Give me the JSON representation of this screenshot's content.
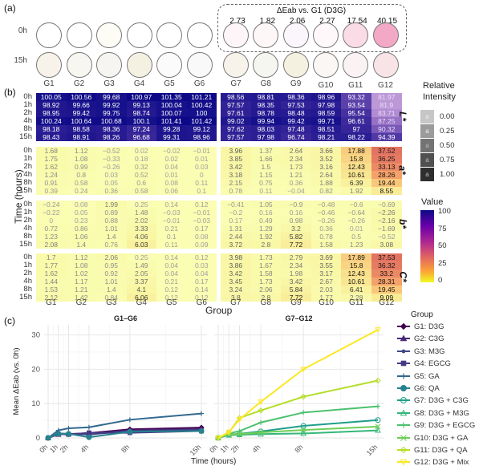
{
  "panels": {
    "a": "(a)",
    "b": "(b)",
    "c": "(c)"
  },
  "panel_a": {
    "row_labels": [
      "0h",
      "15h"
    ],
    "groups": [
      "G1",
      "G2",
      "G3",
      "G4",
      "G5",
      "G6",
      "G7",
      "G8",
      "G9",
      "G10",
      "G11",
      "G12"
    ],
    "well_colors_0h": [
      "#ffffff",
      "#ffffff",
      "#fdfdf6",
      "#ffffff",
      "#ffffff",
      "#ffffff",
      "#fdf5f8",
      "#fdf7f8",
      "#faf6fb",
      "#fef8fa",
      "#fbdbe6",
      "#f3a8c6"
    ],
    "well_colors_15h": [
      "#f8f3ea",
      "#f8f6f1",
      "#f6f5f1",
      "#f5f1e2",
      "#fbfbfb",
      "#f9f9fa",
      "#f7f3ea",
      "#f5f6f0",
      "#f5f1e0",
      "#faf7f4",
      "#fbf3f3",
      "#f8e4e6"
    ],
    "delta_title": "ΔEab vs. G1 (D3G)",
    "delta_values": [
      "2.73",
      "1.82",
      "2.06",
      "2.27",
      "17.54",
      "40.15"
    ]
  },
  "chart_data": [
    {
      "type": "heatmap",
      "title": "",
      "xlabel": "Group",
      "ylabel": "Time (hours)",
      "times": [
        "0h",
        "1h",
        "2h",
        "4h",
        "8h",
        "15h"
      ],
      "groups_left": [
        "G1",
        "G2",
        "G3",
        "G4",
        "G5",
        "G6"
      ],
      "groups_right": [
        "G7",
        "G8",
        "G9",
        "G10",
        "G11",
        "G12"
      ],
      "facets": [
        {
          "name": "L*",
          "values": [
            [
              "100.05",
              "100.56",
              "99.68",
              "100.97",
              "101.35",
              "101.21",
              "98.56",
              "98.81",
              "98.36",
              "98.96",
              "93.32",
              "81.97"
            ],
            [
              "98.92",
              "99.66",
              "99.92",
              "99.13",
              "100.04",
              "100.42",
              "97.57",
              "98.35",
              "97.53",
              "97.98",
              "93.54",
              "81.9"
            ],
            [
              "98.95",
              "99.42",
              "99.75",
              "98.74",
              "100.07",
              "100",
              "97.61",
              "98.78",
              "98.48",
              "98.59",
              "95.54",
              "83.71"
            ],
            [
              "100.24",
              "100.64",
              "100.68",
              "100.1",
              "101.41",
              "101.42",
              "99.02",
              "99.94",
              "99.42",
              "99.71",
              "96.61",
              "87.25"
            ],
            [
              "98.18",
              "98.58",
              "98.36",
              "97.24",
              "99.28",
              "99.12",
              "97.62",
              "98.03",
              "97.48",
              "98.51",
              "97",
              "90.32"
            ],
            [
              "98.43",
              "98.91",
              "98.26",
              "96.68",
              "99.31",
              "98.96",
              "97.57",
              "97.98",
              "96.74",
              "98.21",
              "98.22",
              "94.39"
            ]
          ]
        },
        {
          "name": "a*",
          "values": [
            [
              "1.68",
              "1.12",
              "−0.52",
              "0.02",
              "−0.02",
              "−0.01",
              "3.96",
              "1.37",
              "2.64",
              "3.66",
              "17.88",
              "37.52"
            ],
            [
              "1.75",
              "1.08",
              "−0.33",
              "0.18",
              "0.02",
              "0.01",
              "3.85",
              "1.66",
              "2.34",
              "3.52",
              "15.8",
              "36.25"
            ],
            [
              "1.62",
              "0.99",
              "−0.26",
              "0.32",
              "0.04",
              "0.03",
              "3.42",
              "1.5",
              "1.73",
              "3.16",
              "12.43",
              "33.13"
            ],
            [
              "1.24",
              "0.8",
              "0.03",
              "0.52",
              "0.01",
              "0",
              "3.18",
              "1.15",
              "1.21",
              "2.64",
              "10.61",
              "28.26"
            ],
            [
              "0.91",
              "0.58",
              "0.05",
              "0.6",
              "0.08",
              "0.11",
              "2.15",
              "0.75",
              "0.36",
              "1.88",
              "6.39",
              "19.44"
            ],
            [
              "0.39",
              "0.24",
              "0.36",
              "0.58",
              "0.06",
              "0.1",
              "0.78",
              "0.11",
              "−0.04",
              "0.82",
              "1.92",
              "8.55"
            ]
          ]
        },
        {
          "name": "b*",
          "values": [
            [
              "−0.24",
              "0.08",
              "1.99",
              "0.25",
              "0.14",
              "0.12",
              "−0.41",
              "1.05",
              "−0.9",
              "−0.48",
              "−0.6",
              "−0.69"
            ],
            [
              "−0.22",
              "0.05",
              "0.89",
              "1.48",
              "−0.03",
              "−0.01",
              "−0.2",
              "0.16",
              "0.16",
              "−0.46",
              "−0.64",
              "−2.26"
            ],
            [
              "0",
              "0.23",
              "0.88",
              "2.02",
              "−0.01",
              "−0.03",
              "0.17",
              "0.49",
              "0.98",
              "−0.26",
              "−0.26",
              "−2.16"
            ],
            [
              "0.72",
              "0.86",
              "1.01",
              "3.33",
              "0.21",
              "0.17",
              "1.31",
              "1.29",
              "3.2",
              "0.36",
              "0.01",
              "−1.69"
            ],
            [
              "1.23",
              "1.06",
              "1.4",
              "4.06",
              "0.1",
              "0.08",
              "2.44",
              "1.92",
              "5.82",
              "0.78",
              "0.5",
              "−0.52"
            ],
            [
              "2.08",
              "1.4",
              "0.76",
              "6.03",
              "0.11",
              "0.09",
              "3.72",
              "2.8",
              "7.72",
              "1.58",
              "1.23",
              "3.08"
            ]
          ]
        },
        {
          "name": "C*",
          "values": [
            [
              "1.7",
              "1.12",
              "2.06",
              "0.25",
              "0.14",
              "0.12",
              "3.98",
              "1.73",
              "2.79",
              "3.69",
              "17.89",
              "37.53"
            ],
            [
              "1.77",
              "1.08",
              "0.95",
              "1.49",
              "0.04",
              "0.03",
              "3.86",
              "1.67",
              "2.34",
              "3.55",
              "15.8",
              "36.32"
            ],
            [
              "1.62",
              "1.02",
              "0.92",
              "2.05",
              "0.04",
              "0.04",
              "3.42",
              "1.58",
              "1.98",
              "3.17",
              "12.43",
              "33.2"
            ],
            [
              "1.44",
              "1.17",
              "1.01",
              "3.37",
              "0.21",
              "0.17",
              "3.45",
              "1.73",
              "3.42",
              "2.67",
              "10.61",
              "28.31"
            ],
            [
              "1.53",
              "1.21",
              "1.4",
              "4.1",
              "0.12",
              "0.14",
              "3.24",
              "2.06",
              "5.84",
              "2.03",
              "6.41",
              "19.45"
            ],
            [
              "2.12",
              "1.42",
              "0.84",
              "6.06",
              "0.12",
              "0.12",
              "3.8",
              "2.8",
              "7.72",
              "1.77",
              "2.28",
              "9.09"
            ]
          ]
        }
      ],
      "legend_relative_intensity": {
        "title": "Relative Intensity",
        "ticks": [
          "0.00",
          "0.25",
          "0.50",
          "0.75",
          "1.00"
        ],
        "glyph": "a"
      },
      "legend_value": {
        "title": "Value",
        "ticks": [
          "100",
          "75",
          "50",
          "25",
          "0"
        ],
        "range": [
          0,
          100
        ]
      }
    },
    {
      "type": "line",
      "facets": [
        "G1–G6",
        "G7–G12"
      ],
      "xlabel": "Time (hours)",
      "ylabel": "Mean ΔEab (vs. 0h)",
      "x": [
        0,
        1,
        2,
        4,
        8,
        15
      ],
      "x_tick_labels": [
        "0h",
        "1h",
        "2h",
        "4h",
        "8h",
        "15h"
      ],
      "ylim": [
        0,
        32
      ],
      "y_ticks": [
        0,
        10,
        20,
        30
      ],
      "legend_title": "Group",
      "legend_position": "right",
      "series": [
        {
          "name": "G1: D3G",
          "facet": 0,
          "color": "#440154",
          "marker": "diamond-filled",
          "values": [
            0,
            1.2,
            1.1,
            1.4,
            2.5,
            3.0
          ]
        },
        {
          "name": "G2: C3G",
          "facet": 0,
          "color": "#482878",
          "marker": "triangle-filled",
          "values": [
            0,
            1.0,
            1.2,
            1.2,
            2.2,
            2.6
          ]
        },
        {
          "name": "G3: M3G",
          "facet": 0,
          "color": "#3e4989",
          "marker": "circle-small",
          "values": [
            0,
            1.3,
            1.2,
            1.0,
            2.0,
            2.3
          ]
        },
        {
          "name": "G4: EGCG",
          "facet": 0,
          "color": "#443a83",
          "marker": "square-filled",
          "values": [
            0,
            1.1,
            1.0,
            1.5,
            1.5,
            2.0
          ]
        },
        {
          "name": "G5: GA",
          "facet": 0,
          "color": "#31688e",
          "marker": "plus",
          "values": [
            0,
            2.2,
            2.8,
            3.1,
            5.3,
            7.1
          ]
        },
        {
          "name": "G6: QA",
          "facet": 0,
          "color": "#26828e",
          "marker": "circle-filled",
          "values": [
            0,
            1.2,
            1.2,
            0.2,
            1.8,
            2.0
          ]
        },
        {
          "name": "G7: D3G + C3G",
          "facet": 1,
          "color": "#1f9e89",
          "marker": "circle-open",
          "values": [
            0,
            1.0,
            1.2,
            1.9,
            3.5,
            5.2
          ]
        },
        {
          "name": "G8: D3G + M3G",
          "facet": 1,
          "color": "#35b779",
          "marker": "triangle-open",
          "values": [
            0,
            0.8,
            0.9,
            1.1,
            1.3,
            2.2
          ]
        },
        {
          "name": "G9: D3G + EGCG",
          "facet": 1,
          "color": "#4ac16d",
          "marker": "plus",
          "values": [
            0,
            1.3,
            2.0,
            4.5,
            7.4,
            9.2
          ]
        },
        {
          "name": "G10: D3G + GA",
          "facet": 1,
          "color": "#6ece58",
          "marker": "x",
          "values": [
            0,
            1.0,
            1.1,
            1.6,
            2.3,
            3.3
          ]
        },
        {
          "name": "G11: D3G + QA",
          "facet": 1,
          "color": "#b5de2b",
          "marker": "diamond-open",
          "values": [
            0,
            1.6,
            5.8,
            8.0,
            12.0,
            16.7
          ]
        },
        {
          "name": "G12: D3G + Mix",
          "facet": 1,
          "color": "#fde725",
          "marker": "triangle-down-open",
          "values": [
            0,
            1.7,
            5.4,
            10.5,
            20.0,
            31.5
          ]
        }
      ]
    }
  ]
}
